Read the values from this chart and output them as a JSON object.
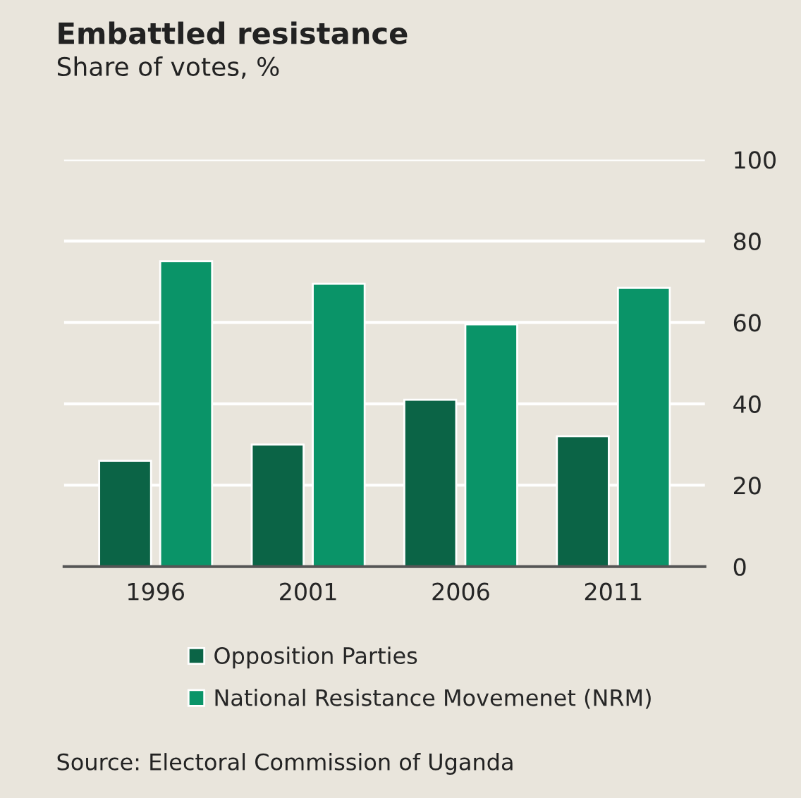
{
  "chart_data": {
    "type": "bar",
    "title": "Embattled resistance",
    "subtitle": "Share of votes, %",
    "categories": [
      "1996",
      "2001",
      "2006",
      "2011"
    ],
    "series": [
      {
        "name": "Opposition Parties",
        "color": "#0b6446",
        "values": [
          26,
          30,
          41,
          32
        ]
      },
      {
        "name": "National Resistance Movemenet (NRM)",
        "color": "#0a9468",
        "values": [
          75,
          69.5,
          59.5,
          68.5
        ]
      }
    ],
    "ylim": [
      0,
      100
    ],
    "yticks": [
      0,
      20,
      40,
      60,
      80,
      100
    ],
    "grid": "y",
    "legend": "bottom",
    "annotations": [
      "Source: Electoral Commission of Uganda"
    ]
  }
}
